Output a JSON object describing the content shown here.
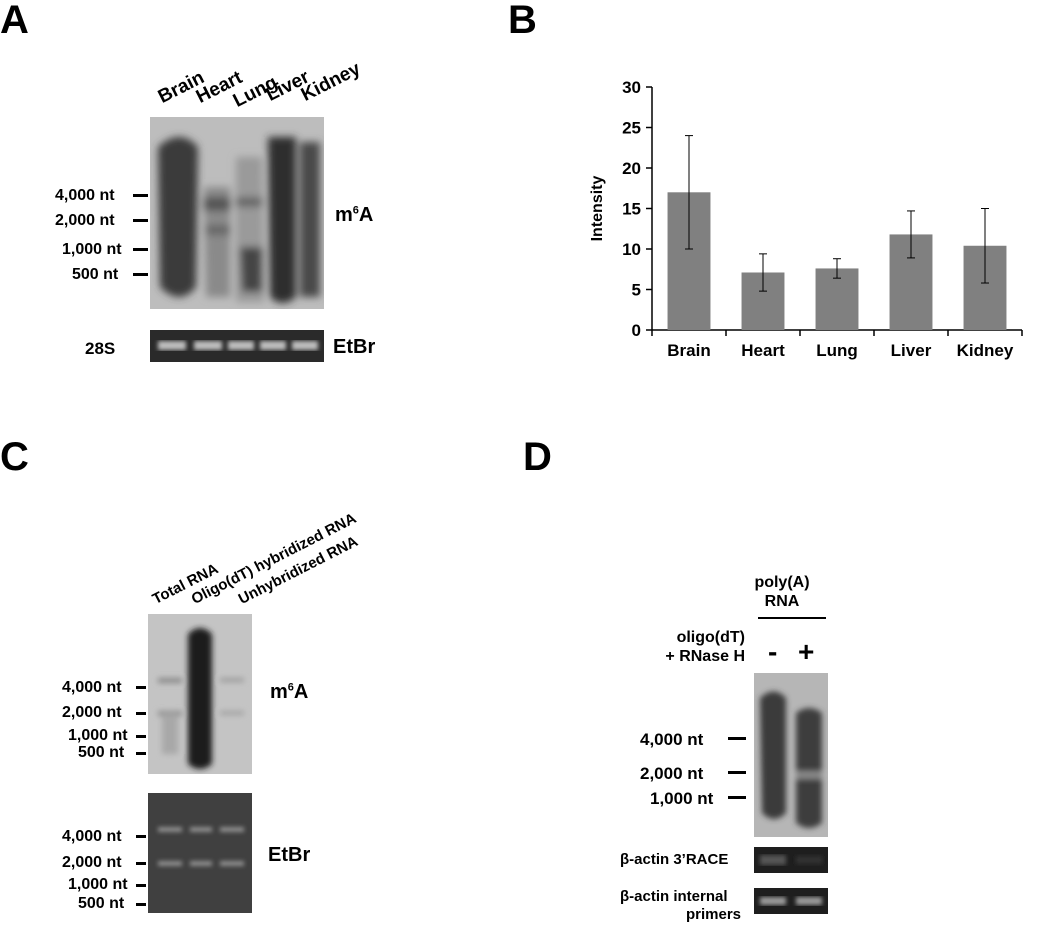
{
  "panels": {
    "A": {
      "letter": "A",
      "lanes": [
        "Brain",
        "Heart",
        "Lung",
        "Liver",
        "Kidney"
      ],
      "markers": [
        "4,000 nt",
        "2,000 nt",
        "1,000 nt",
        "500 nt"
      ],
      "m6a_base": "m",
      "m6a_sup": "6",
      "m6a_tail": "A",
      "loading_left": "28S",
      "loading_right": "EtBr"
    },
    "B": {
      "letter": "B"
    },
    "C": {
      "letter": "C",
      "lanes": [
        "Total RNA",
        "Oligo(dT) hybridized RNA",
        "Unhybridized RNA"
      ],
      "markers_top": [
        "4,000 nt",
        "2,000 nt",
        "1,000 nt",
        "500 nt"
      ],
      "markers_bottom": [
        "4,000 nt",
        "2,000 nt",
        "1,000 nt",
        "500 nt"
      ],
      "m6a_base": "m",
      "m6a_sup": "6",
      "m6a_tail": "A",
      "etbr": "EtBr"
    },
    "D": {
      "letter": "D",
      "header_line1": "poly(A)",
      "header_line2": "RNA",
      "treat_line1": "oligo(dT)",
      "treat_line2": "+ RNase H",
      "minus": "-",
      "plus": "+",
      "markers": [
        "4,000 nt",
        "2,000 nt",
        "1,000 nt"
      ],
      "race_label": "β-actin 3’RACE",
      "internal_line1": "β-actin internal",
      "internal_line2": "primers"
    }
  },
  "chart_data": {
    "type": "bar",
    "categories": [
      "Brain",
      "Heart",
      "Lung",
      "Liver",
      "Kidney"
    ],
    "values": [
      17.0,
      7.1,
      7.6,
      11.8,
      10.4
    ],
    "errors": [
      7.0,
      2.3,
      1.2,
      2.9,
      4.6
    ],
    "ylabel": "Intensity",
    "xlabel": "",
    "title": "",
    "ylim": [
      0,
      30
    ],
    "yticks": [
      0,
      5,
      10,
      15,
      20,
      25,
      30
    ],
    "bar_color": "#808080",
    "grid": false,
    "legend": "none"
  }
}
